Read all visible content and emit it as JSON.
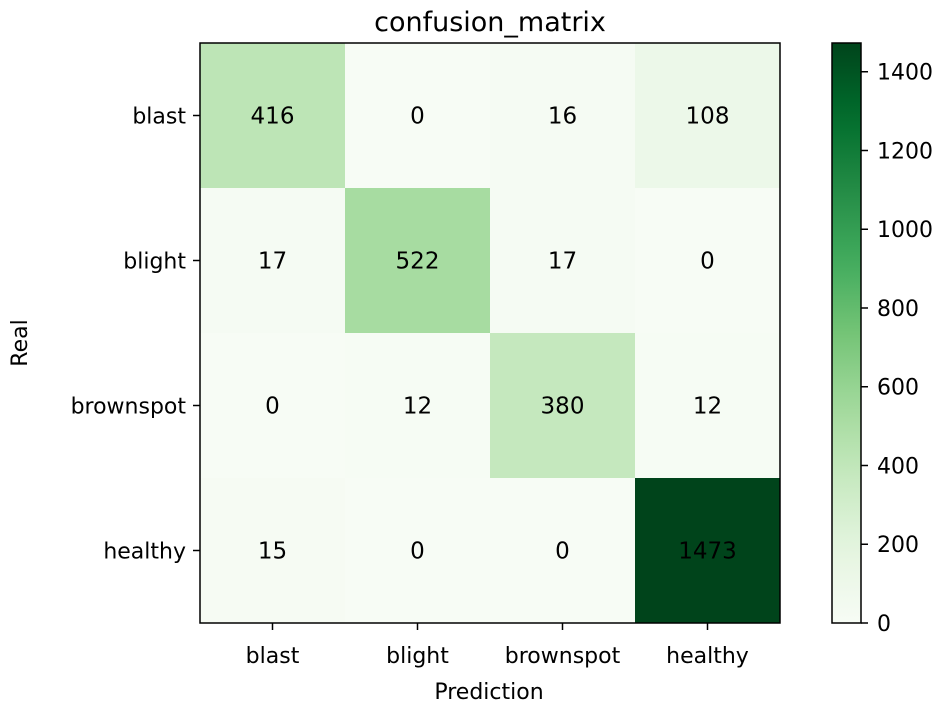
{
  "chart_data": {
    "type": "heatmap",
    "title": "confusion_matrix",
    "xlabel": "Prediction",
    "ylabel": "Real",
    "x_categories": [
      "blast",
      "blight",
      "brownspot",
      "healthy"
    ],
    "y_categories": [
      "blast",
      "blight",
      "brownspot",
      "healthy"
    ],
    "values": [
      [
        416,
        0,
        16,
        108
      ],
      [
        17,
        522,
        17,
        0
      ],
      [
        0,
        12,
        380,
        12
      ],
      [
        15,
        0,
        0,
        1473
      ]
    ],
    "colormap": "Greens",
    "color_range": [
      0,
      1473
    ],
    "colorbar_ticks": [
      0,
      200,
      400,
      600,
      800,
      1000,
      1200,
      1400
    ],
    "colors": {
      "low": "#f7fcf5",
      "high": "#00441b"
    }
  }
}
